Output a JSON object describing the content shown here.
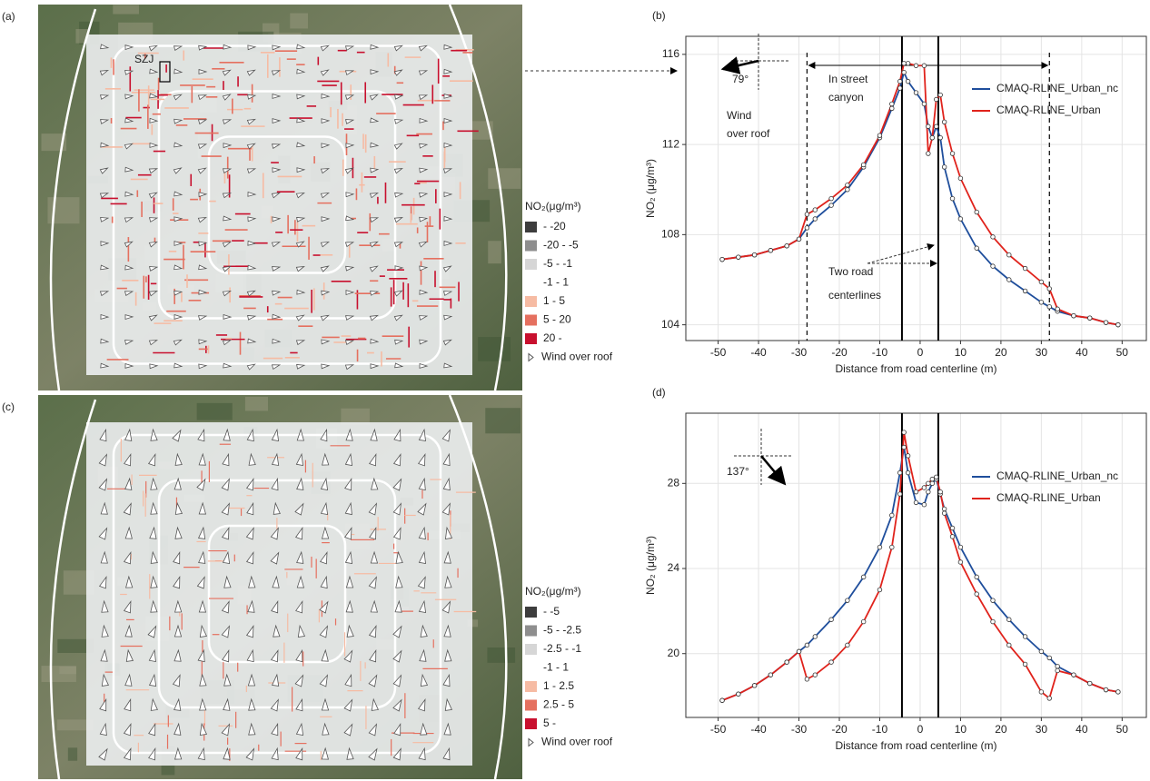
{
  "maps": [
    {
      "panel": "(a)",
      "site_label": "SZJ",
      "legend_title": "NO₂(μg/m³)",
      "legend": [
        {
          "label": "- -20",
          "color": "#3d3d3d"
        },
        {
          "label": "-20 - -5",
          "color": "#8e8e8e"
        },
        {
          "label": "-5 - -1",
          "color": "#d6d6d6"
        },
        {
          "label": "-1 - 1"
        },
        {
          "label": "1 - 5",
          "color": "#f6bba3"
        },
        {
          "label": "5 - 20",
          "color": "#e5705f"
        },
        {
          "label": "20 -",
          "color": "#c8102e"
        },
        {
          "label": "Wind over roof"
        }
      ]
    },
    {
      "panel": "(c)",
      "legend_title": "NO₂(μg/m³)",
      "legend": [
        {
          "label": "- -5",
          "color": "#3d3d3d"
        },
        {
          "label": "-5 - -2.5",
          "color": "#8e8e8e"
        },
        {
          "label": "-2.5 - -1",
          "color": "#d6d6d6"
        },
        {
          "label": "-1 - 1"
        },
        {
          "label": "1 - 2.5",
          "color": "#f6bba3"
        },
        {
          "label": "2.5 - 5",
          "color": "#e5705f"
        },
        {
          "label": "5 -",
          "color": "#c8102e"
        },
        {
          "label": "Wind over roof"
        }
      ]
    }
  ],
  "chart_data": [
    {
      "type": "line",
      "panel": "(b)",
      "xlabel": "Distance from road centerline (m)",
      "ylabel": "NO₂ (μg/m³)",
      "annotations": [
        [
          "79°"
        ],
        [
          "Wind",
          "over roof"
        ],
        [
          "In street",
          "canyon"
        ],
        [
          "Two road",
          "centerlines"
        ]
      ],
      "centerlines": [
        -4.5,
        4.5
      ],
      "canyon_edges": [
        -28,
        32
      ],
      "xlim": [
        -58,
        56
      ],
      "ylim": [
        103.3,
        116.8
      ],
      "xticks": [
        -50,
        -40,
        -30,
        -20,
        -10,
        0,
        10,
        20,
        30,
        40,
        50
      ],
      "yticks": [
        104,
        108,
        112,
        116
      ],
      "grid": true,
      "x": [
        -49,
        -45,
        -41,
        -37,
        -33,
        -30,
        -28,
        -26,
        -22,
        -18,
        -14,
        -10,
        -7,
        -5,
        -4,
        -3,
        -1,
        1,
        2,
        3,
        4,
        5,
        6,
        8,
        10,
        14,
        18,
        22,
        26,
        30,
        32,
        34,
        38,
        42,
        46,
        49
      ],
      "series": [
        {
          "name": "CMAQ-RLINE_Urban_nc",
          "color": "#1f4e9c",
          "values": [
            106.9,
            107.0,
            107.1,
            107.3,
            107.5,
            107.8,
            108.3,
            108.7,
            109.3,
            110.0,
            111.0,
            112.3,
            113.6,
            114.5,
            115.2,
            114.8,
            114.3,
            113.8,
            112.8,
            112.3,
            112.8,
            112.3,
            111.0,
            109.6,
            108.7,
            107.4,
            106.6,
            106.0,
            105.5,
            105.0,
            104.8,
            104.6,
            104.4,
            104.3,
            104.1,
            104.0
          ]
        },
        {
          "name": "CMAQ-RLINE_Urban",
          "color": "#e0231c",
          "values": [
            106.9,
            107.0,
            107.1,
            107.3,
            107.5,
            107.8,
            108.9,
            109.1,
            109.6,
            110.2,
            111.1,
            112.4,
            113.8,
            114.8,
            115.6,
            115.6,
            115.5,
            115.5,
            111.6,
            112.3,
            114.0,
            114.2,
            113.0,
            111.6,
            110.5,
            109.0,
            107.9,
            107.1,
            106.5,
            105.9,
            105.6,
            104.7,
            104.4,
            104.3,
            104.1,
            104.0
          ]
        }
      ]
    },
    {
      "type": "line",
      "panel": "(d)",
      "xlabel": "Distance from road centerline (m)",
      "ylabel": "NO₂ (μg/m³)",
      "annotations": [
        [
          "137°"
        ]
      ],
      "centerlines": [
        -4.5,
        4.5
      ],
      "xlim": [
        -58,
        56
      ],
      "ylim": [
        17,
        31.3
      ],
      "xticks": [
        -50,
        -40,
        -30,
        -20,
        -10,
        0,
        10,
        20,
        30,
        40,
        50
      ],
      "yticks": [
        20,
        24,
        28
      ],
      "grid": true,
      "x": [
        -49,
        -45,
        -41,
        -37,
        -33,
        -30,
        -28,
        -26,
        -22,
        -18,
        -14,
        -10,
        -7,
        -5,
        -4,
        -3,
        -1,
        1,
        2,
        3,
        4,
        5,
        6,
        8,
        10,
        14,
        18,
        22,
        26,
        30,
        32,
        34,
        38,
        42,
        46,
        49
      ],
      "series": [
        {
          "name": "CMAQ-RLINE_Urban_nc",
          "color": "#1f4e9c",
          "values": [
            17.8,
            18.1,
            18.5,
            19.0,
            19.6,
            20.1,
            20.4,
            20.8,
            21.6,
            22.5,
            23.6,
            25.0,
            26.5,
            28.5,
            29.7,
            28.5,
            27.1,
            27.0,
            27.6,
            28.0,
            28.2,
            27.5,
            26.8,
            25.9,
            25.0,
            23.6,
            22.5,
            21.6,
            20.8,
            20.1,
            19.8,
            19.4,
            19.0,
            18.6,
            18.3,
            18.2
          ]
        },
        {
          "name": "CMAQ-RLINE_Urban",
          "color": "#e0231c",
          "values": [
            17.8,
            18.1,
            18.5,
            19.0,
            19.6,
            20.1,
            18.8,
            19.0,
            19.6,
            20.4,
            21.5,
            23.0,
            25.0,
            27.5,
            30.4,
            29.3,
            27.6,
            27.8,
            28.0,
            28.2,
            28.3,
            27.6,
            26.6,
            25.5,
            24.3,
            22.8,
            21.5,
            20.4,
            19.5,
            18.2,
            17.9,
            19.2,
            19.0,
            18.6,
            18.3,
            18.2
          ]
        }
      ]
    }
  ]
}
